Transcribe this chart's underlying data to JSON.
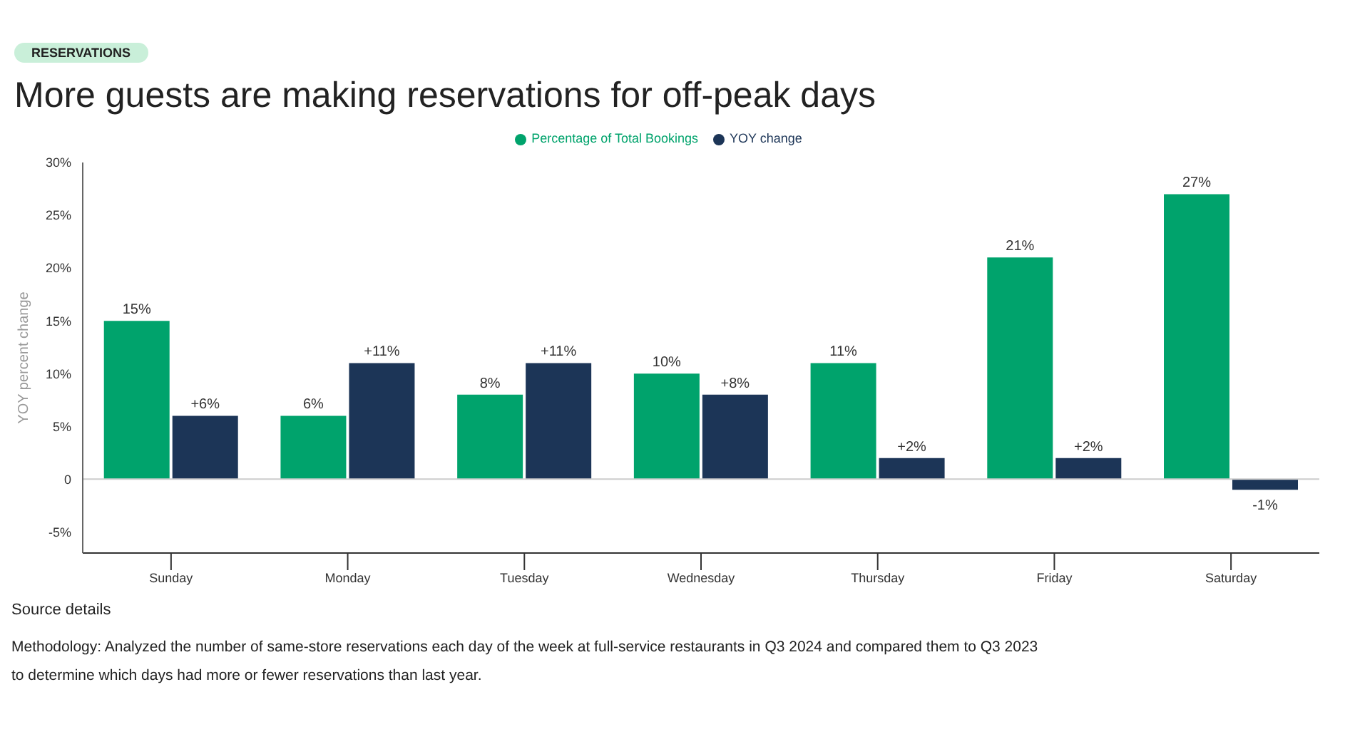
{
  "chart_data": {
    "type": "bar",
    "title": "More guests are making reservations for off-peak days",
    "ylabel": "YOY percent change",
    "annotations": [
      "RESERVATIONS",
      "Source details",
      "Methodology: Analyzed the number of same-store reservations each day of the week at full-service restaurants in Q3 2024 and compared them to Q3 2023 to determine which days had more or fewer reservations than last year."
    ],
    "categories": [
      "Sunday",
      "Monday",
      "Tuesday",
      "Wednesday",
      "Thursday",
      "Friday",
      "Saturday"
    ],
    "series": [
      {
        "name": "Percentage of Total Bookings",
        "color": "#00a36c",
        "values": [
          15,
          6,
          8,
          10,
          11,
          21,
          27
        ],
        "value_labels": [
          "15%",
          "6%",
          "8%",
          "10%",
          "11%",
          "21%",
          "27%"
        ]
      },
      {
        "name": "YOY change",
        "color": "#1c3557",
        "values": [
          6,
          11,
          11,
          8,
          2,
          2,
          -1
        ],
        "value_labels": [
          "+6%",
          "+11%",
          "+11%",
          "+8%",
          "+2%",
          "+2%",
          "-1%"
        ]
      }
    ],
    "ylim": [
      -7,
      30
    ],
    "yticks": [
      {
        "value": 30,
        "label": "30%"
      },
      {
        "value": 25,
        "label": "25%"
      },
      {
        "value": 20,
        "label": "20%"
      },
      {
        "value": 15,
        "label": "15%"
      },
      {
        "value": 10,
        "label": "10%"
      },
      {
        "value": 5,
        "label": "5%"
      },
      0,
      {
        "value": -5,
        "label": "-5%"
      }
    ],
    "ref_lines": [
      {
        "axis": "y",
        "value": 0,
        "color": "#cccccc"
      }
    ],
    "grid": false,
    "legend": "top"
  }
}
